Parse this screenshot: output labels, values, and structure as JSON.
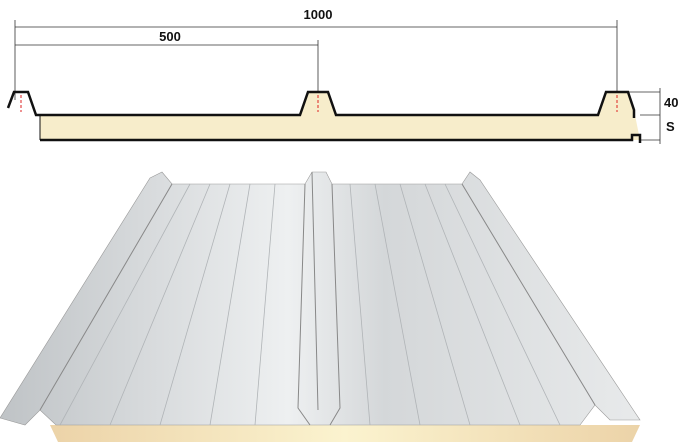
{
  "labels": {
    "total_width": "1000",
    "half_width": "500",
    "rib_height": "40",
    "thickness": "S"
  }
}
